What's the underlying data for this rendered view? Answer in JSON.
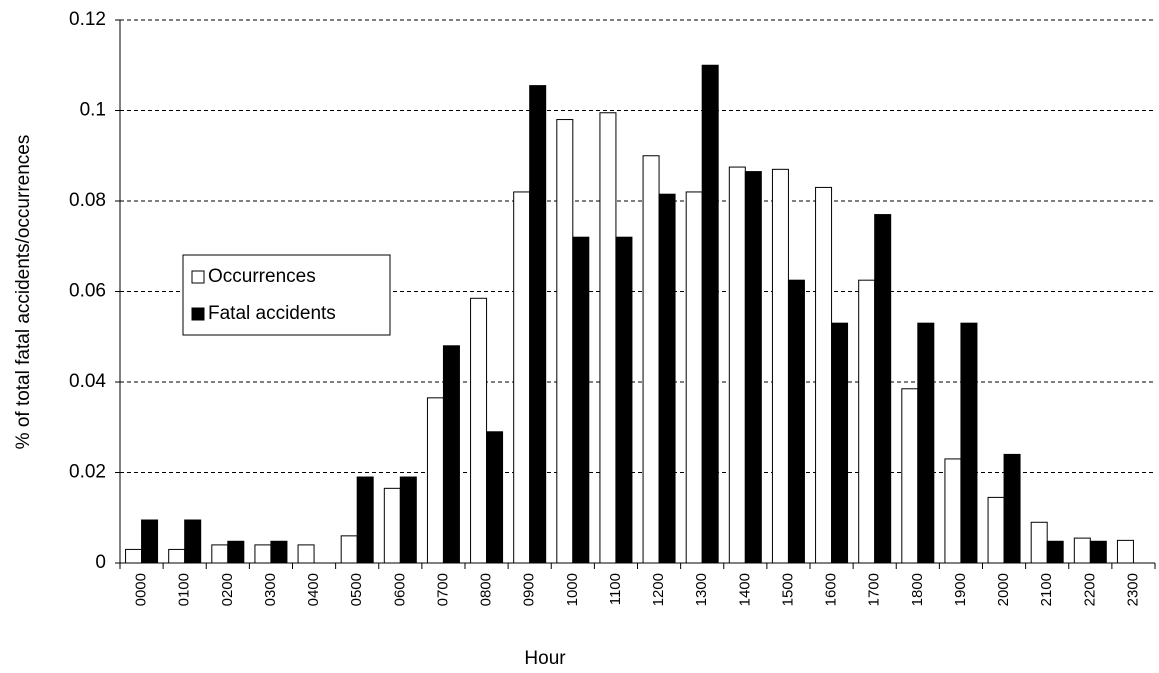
{
  "chart_data": {
    "type": "bar",
    "y_label": "% of total fatal accidents/occurrences",
    "x_label": "Hour",
    "categories": [
      "0000",
      "0100",
      "0200",
      "0300",
      "0400",
      "0500",
      "0600",
      "0700",
      "0800",
      "0900",
      "1000",
      "1100",
      "1200",
      "1300",
      "1400",
      "1500",
      "1600",
      "1700",
      "1800",
      "1900",
      "2000",
      "2100",
      "2200",
      "2300"
    ],
    "series": [
      {
        "name": "Occurrences",
        "color": "#ffffff",
        "values": [
          0.003,
          0.003,
          0.004,
          0.004,
          0.004,
          0.006,
          0.0165,
          0.0365,
          0.0585,
          0.082,
          0.098,
          0.0995,
          0.09,
          0.082,
          0.0875,
          0.087,
          0.083,
          0.0625,
          0.0385,
          0.023,
          0.0145,
          0.009,
          0.0055,
          0.005
        ]
      },
      {
        "name": "Fatal accidents",
        "color": "#000000",
        "values": [
          0.0095,
          0.0095,
          0.0048,
          0.0048,
          0,
          0.019,
          0.019,
          0.048,
          0.029,
          0.1055,
          0.072,
          0.072,
          0.0815,
          0.11,
          0.0865,
          0.0625,
          0.053,
          0.077,
          0.053,
          0.053,
          0.024,
          0.0048,
          0.0048,
          0
        ]
      }
    ],
    "ylim": [
      0,
      0.12
    ],
    "yticks": [
      0,
      0.02,
      0.04,
      0.06,
      0.08,
      0.1,
      0.12
    ],
    "grid": true
  }
}
